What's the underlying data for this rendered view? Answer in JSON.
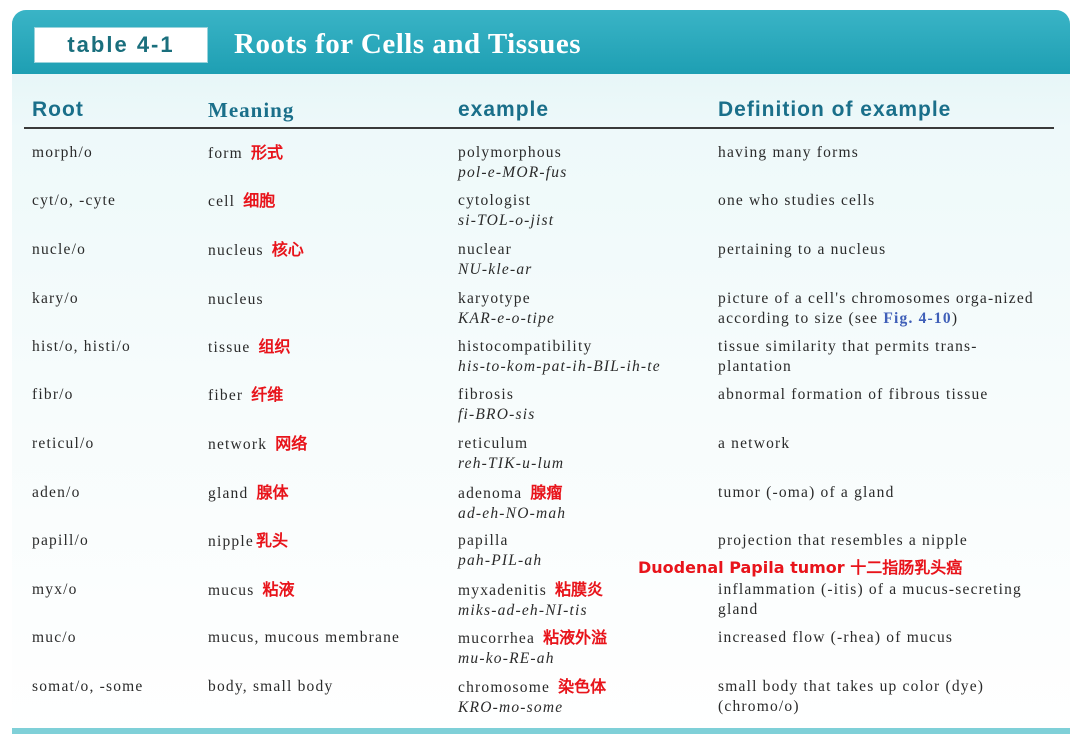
{
  "header": {
    "table_tag": "table 4-1",
    "title": "Roots for Cells and Tissues"
  },
  "columns": {
    "root": "Root",
    "meaning": "Meaning",
    "example": "example",
    "definition": "Definition of example"
  },
  "rows": [
    {
      "root": "morph/o",
      "meaning": "form",
      "meaning_cn": "形式",
      "example": "polymorphous",
      "pron": "pol-e-MOR-fus",
      "example_cn": "",
      "definition": "having many forms"
    },
    {
      "root": "cyt/o, -cyte",
      "meaning": "cell",
      "meaning_cn": "细胞",
      "example": "cytologist",
      "pron": "si-TOL-o-jist",
      "example_cn": "",
      "definition": "one who studies cells"
    },
    {
      "root": "nucle/o",
      "meaning": "nucleus",
      "meaning_cn": "核心",
      "example": "nuclear",
      "pron": "NU-kle-ar",
      "example_cn": "",
      "definition": "pertaining to a nucleus"
    },
    {
      "root": "kary/o",
      "meaning": "nucleus",
      "meaning_cn": "",
      "example": "karyotype",
      "pron": "KAR-e-o-tipe",
      "example_cn": "",
      "definition": "picture of a cell's chromosomes orga-nized according to size (see",
      "fig_ref": "Fig. 4-10",
      "definition_tail": ")"
    },
    {
      "root": "hist/o, histi/o",
      "meaning": "tissue",
      "meaning_cn": "组织",
      "example": "histocompatibility",
      "pron": "his-to-kom-pat-ih-BIL-ih-te",
      "example_cn": "",
      "definition": "tissue similarity that permits trans-plantation"
    },
    {
      "root": "fibr/o",
      "meaning": "fiber",
      "meaning_cn": "纤维",
      "example": "fibrosis",
      "pron": "fi-BRO-sis",
      "example_cn": "",
      "definition": "abnormal formation of fibrous tissue"
    },
    {
      "root": "reticul/o",
      "meaning": "network",
      "meaning_cn": "网络",
      "example": "reticulum",
      "pron": "reh-TIK-u-lum",
      "example_cn": "",
      "definition": "a network"
    },
    {
      "root": "aden/o",
      "meaning": "gland",
      "meaning_cn": "腺体",
      "example": "adenoma",
      "pron": "ad-eh-NO-mah",
      "example_cn": "腺瘤",
      "definition": "tumor (-oma) of a gland"
    },
    {
      "root": "papill/o",
      "meaning": "nipple",
      "meaning_cn": "乳头",
      "example": "papilla",
      "pron": "pah-PIL-ah",
      "example_cn": "",
      "definition": "projection that resembles a nipple"
    },
    {
      "root": "myx/o",
      "meaning": "mucus",
      "meaning_cn": "粘液",
      "example": "myxadenitis",
      "pron": "miks-ad-eh-NI-tis",
      "example_cn": "粘膜炎",
      "definition": "inflammation (-itis) of a mucus-secreting gland"
    },
    {
      "root": "muc/o",
      "meaning": "mucus, mucous membrane",
      "meaning_cn": "",
      "example": "mucorrhea",
      "pron": "mu-ko-RE-ah",
      "example_cn": "粘液外溢",
      "definition": "increased flow (-rhea) of mucus"
    },
    {
      "root": "somat/o, -some",
      "meaning": "body, small body",
      "meaning_cn": "",
      "example": "chromosome",
      "pron": "KRO-mo-some",
      "example_cn": "染色体",
      "definition": "small body that takes up color (dye) (chromo/o)"
    }
  ],
  "annotation": "Duodenal Papila tumor 十二指肠乳头癌"
}
